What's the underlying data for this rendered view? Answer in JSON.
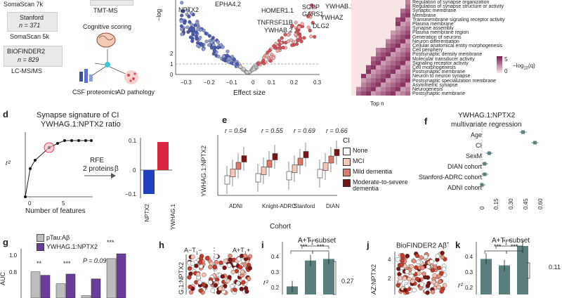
{
  "panel_a": {
    "somascan7k": "SomaScan 7k",
    "stanford_title": "Stanford",
    "stanford_n": "n = 371",
    "somascan5k": "SomaScan 5k",
    "biofinder_title": "BIOFINDER2",
    "biofinder_n": "n = 829",
    "lcmsms": "LC-MS/MS",
    "tmtms": "TMT-MS",
    "cognitive": "Cognitive scoring",
    "csf": "CSF proteomics",
    "ad": "AD pathology"
  },
  "panel_b": {
    "ylabel": "−log",
    "xlabel": "Effect size",
    "xticks": [
      "−0.3",
      "−0.2",
      "−0.1",
      "0",
      "0.1",
      "0.2",
      "0.3"
    ],
    "yticks": [
      "2",
      "1",
      "0"
    ],
    "genes": [
      "NPTX2",
      "EPHA4.2",
      "HOMER1.1",
      "TNFRSF11B",
      "YWHAB.2",
      "GARS1",
      "SGPP",
      "YWHAB.1",
      "YWHAZ",
      "DLG2"
    ]
  },
  "panel_c": {
    "terms": [
      "Regulation of synapse organization",
      "Regulation of synapse structure or activity",
      "Synaptic membrane",
      "Membrane",
      "Transmembrane signaling receptor activity",
      "Plasma membrane",
      "Synapse assembly",
      "Plasma membrane region",
      "Generation of neurons",
      "Neuron differentiation",
      "Cellular anatomical entity morphogenesis",
      "Cell periphery",
      "Postsynaptic density membrane",
      "Molecular transducer activity",
      "Signaling receptor activity",
      "Cell morphogenesis",
      "Postsynaptic membrane",
      "Neuron to neuron synapse",
      "Postsynaptic specialization membrane",
      "Asymmetric synapse",
      "Neurogenesis",
      "Postsynaptic membrane"
    ],
    "legend_5": "5",
    "legend_0": "0",
    "legend_label": "−log",
    "legend_sub": "10",
    "legend_q": "(q)",
    "xlabel": "Top n"
  },
  "panel_d": {
    "label": "d",
    "title1": "Synapse signature of CI",
    "title2": "YWHAG.1:NPTX2 ratio",
    "xlabel": "Number of features",
    "ylabel": "r²",
    "xticks": [
      "0",
      "5"
    ],
    "rfe1": "RFE",
    "rfe2": "2 proteins",
    "beta": "β",
    "bar_ticks": [
      "0.1",
      "0",
      "−0.1"
    ],
    "bar_labels": [
      "NPTX2",
      "YWHAG.1"
    ]
  },
  "panel_e": {
    "label": "e",
    "ylabel": "YWHAG.1:NPTX2",
    "r_values": [
      "r = 0.54",
      "r = 0.55",
      "r = 0.69",
      "r = 0.66"
    ],
    "cohorts": [
      "ADNI",
      "Knight-ADRC",
      "Stanford",
      "DIAN"
    ],
    "xlabel": "Cohort",
    "legend_title": "CI",
    "legend": [
      "None",
      "MCI",
      "Mild dementia",
      "Moderate-to-severe dementia"
    ]
  },
  "panel_f": {
    "label": "f",
    "title1": "YWHAG.1:NPTX2",
    "title2": "multivariate regression",
    "rows": [
      "Age",
      "CI",
      "SexM",
      "DIAN cohort",
      "Stanford-ADRC cohort",
      "ADNI cohort"
    ],
    "xticks": [
      "0",
      "0.15",
      "0.30",
      "0.45",
      "0.60"
    ]
  },
  "panel_g": {
    "label": "g",
    "legend1": "pTau",
    "legend1b": ":Aβ",
    "legend2": "YWHAG.1:NPTX2",
    "ylabel": "AUC",
    "yticks": [
      "1.0",
      "0.8"
    ],
    "sig": [
      "**",
      "***",
      "P = 0.09",
      "***"
    ]
  },
  "panel_h": {
    "label": "h",
    "ylabel": "G.1:NPTX2",
    "left": "A−T",
    "right": "A+T"
  },
  "panel_i": {
    "label": "i",
    "title": "A+T",
    "title_b": " subset",
    "sig1": "***",
    "sig2": "***",
    "sig3": "***",
    "value": "0.27",
    "ylabel": "r²",
    "yticks": [
      "0.4",
      "0.3",
      "0.2"
    ]
  },
  "panel_j": {
    "label": "j",
    "title": "BioFINDER2 Aβ",
    "ylabel": "AZ:NPTX2",
    "yticks": [
      "4",
      "2"
    ]
  },
  "panel_k": {
    "label": "k",
    "title": "A+T",
    "title_b": " subset",
    "sig1": "***",
    "sig2": "***",
    "sig3": "***",
    "value": "0.11",
    "ylabel": "r²",
    "yticks": [
      "0.4",
      "0.3",
      "0.2"
    ]
  },
  "colors": {
    "purple": "#6a3d9a",
    "grey": "#bdbdbd",
    "teal": "#5b7f7c",
    "red": "#d7263d",
    "blue": "#1f3fbf",
    "heat": "#7a1a4f"
  }
}
